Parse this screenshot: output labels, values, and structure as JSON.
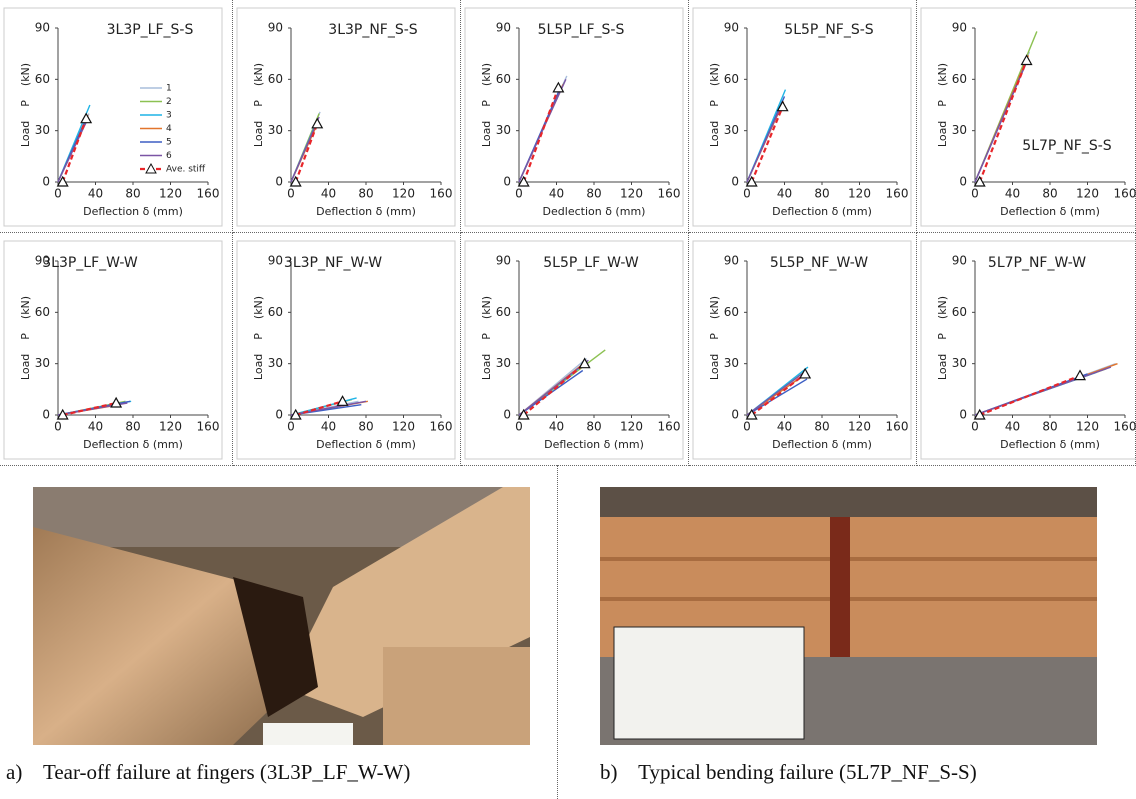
{
  "chart_data": [
    {
      "type": "line",
      "title": "3L3P_LF_S-S",
      "x_label": "Deflection δ (mm)",
      "y_label": "Load    P    (kN)",
      "xlim": [
        0,
        160
      ],
      "ylim": [
        0,
        90
      ],
      "xticks": [
        0,
        40,
        80,
        120,
        160
      ],
      "yticks": [
        0,
        30,
        60,
        90
      ],
      "legend": "right",
      "series": [
        {
          "name": "1",
          "color": "#a9bedc",
          "x": [
            0,
            33
          ],
          "values": [
            0,
            40
          ]
        },
        {
          "name": "2",
          "color": "#8cc152",
          "x": [
            0,
            31
          ],
          "values": [
            0,
            38
          ]
        },
        {
          "name": "3",
          "color": "#1fb4e6",
          "x": [
            0,
            34
          ],
          "values": [
            0,
            45
          ]
        },
        {
          "name": "4",
          "color": "#e2752c",
          "x": [
            0,
            32
          ],
          "values": [
            0,
            39
          ]
        },
        {
          "name": "5",
          "color": "#3d5fc4",
          "x": [
            0,
            30
          ],
          "values": [
            0,
            37
          ]
        },
        {
          "name": "6",
          "color": "#7b55a5",
          "x": [
            0,
            31
          ],
          "values": [
            0,
            36
          ]
        },
        {
          "name": "Ave. stiff",
          "color": "#e8262a",
          "dashed": true,
          "marker": "triangle",
          "x": [
            5,
            30
          ],
          "values": [
            0,
            37
          ]
        }
      ]
    },
    {
      "type": "line",
      "title": "3L3P_NF_S-S",
      "x_label": "Deflection δ (mm)",
      "y_label": "Load    P    (kN)",
      "xlim": [
        0,
        160
      ],
      "ylim": [
        0,
        90
      ],
      "xticks": [
        0,
        40,
        80,
        120,
        160
      ],
      "yticks": [
        0,
        30,
        60,
        90
      ],
      "series": [
        {
          "color": "#a9bedc",
          "x": [
            0,
            31
          ],
          "values": [
            0,
            41
          ]
        },
        {
          "color": "#8cc152",
          "x": [
            0,
            30
          ],
          "values": [
            0,
            40
          ]
        },
        {
          "color": "#1fb4e6",
          "x": [
            0,
            28
          ],
          "values": [
            0,
            36
          ]
        },
        {
          "color": "#e2752c",
          "x": [
            0,
            29
          ],
          "values": [
            0,
            35
          ]
        },
        {
          "color": "#3d5fc4",
          "x": [
            0,
            27
          ],
          "values": [
            0,
            34
          ]
        },
        {
          "color": "#7b55a5",
          "x": [
            0,
            30
          ],
          "values": [
            0,
            38
          ]
        },
        {
          "color": "#e8262a",
          "dashed": true,
          "marker": "triangle",
          "x": [
            5,
            28
          ],
          "values": [
            0,
            34
          ]
        }
      ]
    },
    {
      "type": "line",
      "title": "5L5P_LF_S-S",
      "x_label": "Dedlection δ (mm)",
      "y_label": "Load    P    (kN)",
      "xlim": [
        0,
        160
      ],
      "ylim": [
        0,
        90
      ],
      "xticks": [
        0,
        40,
        80,
        120,
        160
      ],
      "yticks": [
        0,
        30,
        60,
        90
      ],
      "series": [
        {
          "color": "#a9bedc",
          "x": [
            0,
            51
          ],
          "values": [
            0,
            62
          ]
        },
        {
          "color": "#8cc152",
          "x": [
            0,
            48
          ],
          "values": [
            0,
            58
          ]
        },
        {
          "color": "#1fb4e6",
          "x": [
            0,
            46
          ],
          "values": [
            0,
            56
          ]
        },
        {
          "color": "#e2752c",
          "x": [
            0,
            47
          ],
          "values": [
            0,
            57
          ]
        },
        {
          "color": "#3d5fc4",
          "x": [
            0,
            44
          ],
          "values": [
            0,
            55
          ]
        },
        {
          "color": "#7b55a5",
          "x": [
            0,
            50
          ],
          "values": [
            0,
            60
          ]
        },
        {
          "color": "#e8262a",
          "dashed": true,
          "marker": "triangle",
          "x": [
            5,
            42
          ],
          "values": [
            0,
            55
          ]
        }
      ]
    },
    {
      "type": "line",
      "title": "5L5P_NF_S-S",
      "x_label": "Deflection δ (mm)",
      "y_label": "Load    P    (kN)",
      "xlim": [
        0,
        160
      ],
      "ylim": [
        0,
        90
      ],
      "xticks": [
        0,
        40,
        80,
        120,
        160
      ],
      "yticks": [
        0,
        30,
        60,
        90
      ],
      "series": [
        {
          "color": "#a9bedc",
          "x": [
            0,
            38
          ],
          "values": [
            0,
            48
          ]
        },
        {
          "color": "#8cc152",
          "x": [
            0,
            37
          ],
          "values": [
            0,
            46
          ]
        },
        {
          "color": "#1fb4e6",
          "x": [
            0,
            41
          ],
          "values": [
            0,
            54
          ]
        },
        {
          "color": "#e2752c",
          "x": [
            0,
            39
          ],
          "values": [
            0,
            47
          ]
        },
        {
          "color": "#3d5fc4",
          "x": [
            0,
            40
          ],
          "values": [
            0,
            50
          ]
        },
        {
          "color": "#7b55a5",
          "x": [
            0,
            36
          ],
          "values": [
            0,
            44
          ]
        },
        {
          "color": "#e8262a",
          "dashed": true,
          "marker": "triangle",
          "x": [
            5,
            38
          ],
          "values": [
            0,
            44
          ]
        }
      ]
    },
    {
      "type": "line",
      "title": "5L7P_NF_S-S",
      "x_label": "Deflection δ (mm)",
      "y_label": "Load    P    (kN)",
      "xlim": [
        0,
        160
      ],
      "ylim": [
        0,
        90
      ],
      "xticks": [
        0,
        40,
        80,
        120,
        160
      ],
      "yticks": [
        0,
        30,
        60,
        90
      ],
      "series": [
        {
          "color": "#a9bedc",
          "x": [
            0,
            58
          ],
          "values": [
            0,
            76
          ]
        },
        {
          "color": "#8cc152",
          "x": [
            0,
            66
          ],
          "values": [
            0,
            88
          ]
        },
        {
          "color": "#1fb4e6",
          "x": [
            0,
            56
          ],
          "values": [
            0,
            72
          ]
        },
        {
          "color": "#e2752c",
          "x": [
            0,
            57
          ],
          "values": [
            0,
            74
          ]
        },
        {
          "color": "#3d5fc4",
          "x": [
            0,
            55
          ],
          "values": [
            0,
            70
          ]
        },
        {
          "color": "#7b55a5",
          "x": [
            0,
            54
          ],
          "values": [
            0,
            69
          ]
        },
        {
          "color": "#e8262a",
          "dashed": true,
          "marker": "triangle",
          "x": [
            5,
            55
          ],
          "values": [
            0,
            71
          ]
        }
      ]
    },
    {
      "type": "line",
      "title": "3L3P_LF_W-W",
      "x_label": "Deflection δ (mm)",
      "y_label": "Load    P    (kN)",
      "xlim": [
        0,
        160
      ],
      "ylim": [
        0,
        90
      ],
      "xticks": [
        0,
        40,
        80,
        120,
        160
      ],
      "yticks": [
        0,
        30,
        60,
        90
      ],
      "series": [
        {
          "color": "#a9bedc",
          "x": [
            0,
            70
          ],
          "values": [
            0,
            7
          ]
        },
        {
          "color": "#8cc152",
          "x": [
            0,
            72
          ],
          "values": [
            0,
            8
          ]
        },
        {
          "color": "#1fb4e6",
          "x": [
            0,
            78
          ],
          "values": [
            0,
            8
          ]
        },
        {
          "color": "#e2752c",
          "x": [
            0,
            66
          ],
          "values": [
            0,
            6
          ]
        },
        {
          "color": "#3d5fc4",
          "x": [
            0,
            77
          ],
          "values": [
            0,
            8
          ]
        },
        {
          "color": "#7b55a5",
          "x": [
            0,
            74
          ],
          "values": [
            0,
            7
          ]
        },
        {
          "color": "#e8262a",
          "dashed": true,
          "marker": "triangle",
          "x": [
            5,
            62
          ],
          "values": [
            0,
            7
          ]
        }
      ]
    },
    {
      "type": "line",
      "title": "3L3P_NF_W-W",
      "x_label": "Deflection δ (mm)",
      "y_label": "Load    P    (kN)",
      "xlim": [
        0,
        160
      ],
      "ylim": [
        0,
        90
      ],
      "xticks": [
        0,
        40,
        80,
        120,
        160
      ],
      "yticks": [
        0,
        30,
        60,
        90
      ],
      "series": [
        {
          "color": "#a9bedc",
          "x": [
            0,
            72
          ],
          "values": [
            0,
            8
          ]
        },
        {
          "color": "#8cc152",
          "x": [
            0,
            65
          ],
          "values": [
            0,
            9
          ]
        },
        {
          "color": "#1fb4e6",
          "x": [
            0,
            70
          ],
          "values": [
            0,
            10
          ]
        },
        {
          "color": "#e2752c",
          "x": [
            0,
            82
          ],
          "values": [
            0,
            8
          ]
        },
        {
          "color": "#3d5fc4",
          "x": [
            0,
            75
          ],
          "values": [
            0,
            6
          ]
        },
        {
          "color": "#7b55a5",
          "x": [
            0,
            80
          ],
          "values": [
            0,
            8
          ]
        },
        {
          "color": "#e8262a",
          "dashed": true,
          "marker": "triangle",
          "x": [
            5,
            55
          ],
          "values": [
            0,
            8
          ]
        }
      ]
    },
    {
      "type": "line",
      "title": "5L5P_LF_W-W",
      "x_label": "Deflection δ (mm)",
      "y_label": "Load    P    (kN)",
      "xlim": [
        0,
        160
      ],
      "ylim": [
        0,
        90
      ],
      "xticks": [
        0,
        40,
        80,
        120,
        160
      ],
      "yticks": [
        0,
        30,
        60,
        90
      ],
      "series": [
        {
          "color": "#a9bedc",
          "x": [
            0,
            72
          ],
          "values": [
            0,
            33
          ]
        },
        {
          "color": "#8cc152",
          "x": [
            0,
            92
          ],
          "values": [
            0,
            38
          ]
        },
        {
          "color": "#1fb4e6",
          "x": [
            0,
            70
          ],
          "values": [
            0,
            30
          ]
        },
        {
          "color": "#e2752c",
          "x": [
            0,
            71
          ],
          "values": [
            0,
            31
          ]
        },
        {
          "color": "#3d5fc4",
          "x": [
            0,
            68
          ],
          "values": [
            0,
            26
          ]
        },
        {
          "color": "#7b55a5",
          "x": [
            0,
            74
          ],
          "values": [
            0,
            32
          ]
        },
        {
          "color": "#e8262a",
          "dashed": true,
          "marker": "triangle",
          "x": [
            5,
            70
          ],
          "values": [
            0,
            30
          ]
        }
      ]
    },
    {
      "type": "line",
      "title": "5L5P_NF_W-W",
      "x_label": "Deflection δ (mm)",
      "y_label": "Load    P    (kN)",
      "xlim": [
        0,
        160
      ],
      "ylim": [
        0,
        90
      ],
      "xticks": [
        0,
        40,
        80,
        120,
        160
      ],
      "yticks": [
        0,
        30,
        60,
        90
      ],
      "series": [
        {
          "color": "#a9bedc",
          "x": [
            0,
            62
          ],
          "values": [
            0,
            24
          ]
        },
        {
          "color": "#8cc152",
          "x": [
            0,
            63
          ],
          "values": [
            0,
            26
          ]
        },
        {
          "color": "#1fb4e6",
          "x": [
            0,
            65
          ],
          "values": [
            0,
            28
          ]
        },
        {
          "color": "#e2752c",
          "x": [
            0,
            60
          ],
          "values": [
            0,
            23
          ]
        },
        {
          "color": "#3d5fc4",
          "x": [
            0,
            64
          ],
          "values": [
            0,
            21
          ]
        },
        {
          "color": "#7b55a5",
          "x": [
            0,
            61
          ],
          "values": [
            0,
            25
          ]
        },
        {
          "color": "#e8262a",
          "dashed": true,
          "marker": "triangle",
          "x": [
            5,
            62
          ],
          "values": [
            0,
            24
          ]
        }
      ]
    },
    {
      "type": "line",
      "title": "5L7P_NF_W-W",
      "x_label": "Deflection δ (mm)",
      "y_label": "Load    P    (kN)",
      "xlim": [
        0,
        160
      ],
      "ylim": [
        0,
        90
      ],
      "xticks": [
        0,
        40,
        80,
        120,
        160
      ],
      "yticks": [
        0,
        30,
        60,
        90
      ],
      "series": [
        {
          "color": "#a9bedc",
          "x": [
            0,
            150
          ],
          "values": [
            0,
            30
          ]
        },
        {
          "color": "#8cc152",
          "x": [
            0,
            140
          ],
          "values": [
            0,
            27
          ]
        },
        {
          "color": "#1fb4e6",
          "x": [
            0,
            130
          ],
          "values": [
            0,
            25
          ]
        },
        {
          "color": "#e2752c",
          "x": [
            0,
            152
          ],
          "values": [
            0,
            30
          ]
        },
        {
          "color": "#3d5fc4",
          "x": [
            0,
            120
          ],
          "values": [
            0,
            24
          ]
        },
        {
          "color": "#7b55a5",
          "x": [
            0,
            145
          ],
          "values": [
            0,
            28
          ]
        },
        {
          "color": "#e8262a",
          "dashed": true,
          "marker": "triangle",
          "x": [
            5,
            112
          ],
          "values": [
            0,
            23
          ]
        }
      ]
    }
  ],
  "captions": [
    {
      "label": "a)",
      "text": "Tear-off failure at fingers (3L3P_LF_W-W)"
    },
    {
      "label": "b)",
      "text": "Typical bending failure (5L7P_NF_S-S)"
    }
  ]
}
